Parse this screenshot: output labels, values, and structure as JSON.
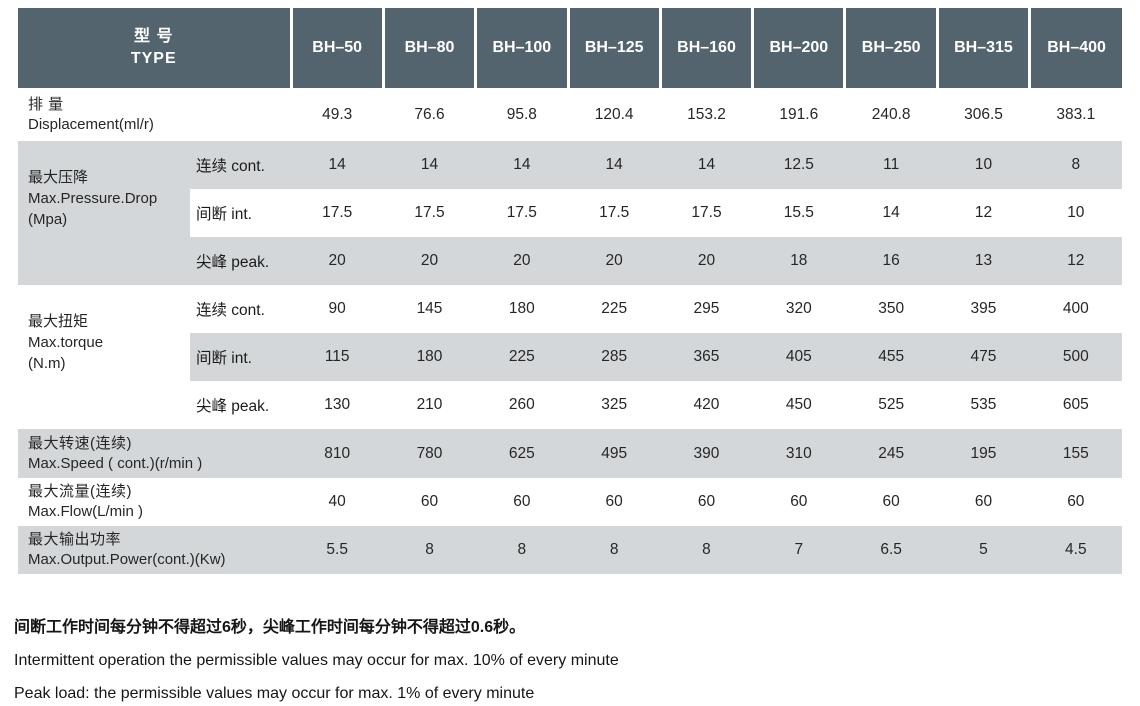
{
  "header": {
    "type_cn": "型 号",
    "type_en": "TYPE",
    "models": [
      "BH–50",
      "BH–80",
      "BH–100",
      "BH–125",
      "BH–160",
      "BH–200",
      "BH–250",
      "BH–315",
      "BH–400"
    ]
  },
  "displacement": {
    "label_cn": "排 量",
    "label_en": "Displacement(ml/r)",
    "values": [
      "49.3",
      "76.6",
      "95.8",
      "120.4",
      "153.2",
      "191.6",
      "240.8",
      "306.5",
      "383.1"
    ]
  },
  "pressure": {
    "label_cn": "最大压降",
    "label_en": "Max.Pressure.Drop",
    "label_unit": "(Mpa)",
    "cont": {
      "label": "连续 cont.",
      "values": [
        "14",
        "14",
        "14",
        "14",
        "14",
        "12.5",
        "11",
        "10",
        "8"
      ]
    },
    "int": {
      "label": "间断 int.",
      "values": [
        "17.5",
        "17.5",
        "17.5",
        "17.5",
        "17.5",
        "15.5",
        "14",
        "12",
        "10"
      ]
    },
    "peak": {
      "label": "尖峰 peak.",
      "values": [
        "20",
        "20",
        "20",
        "20",
        "20",
        "18",
        "16",
        "13",
        "12"
      ]
    }
  },
  "torque": {
    "label_cn": "最大扭矩",
    "label_en": "Max.torque",
    "label_unit": "(N.m)",
    "cont": {
      "label": "连续 cont.",
      "values": [
        "90",
        "145",
        "180",
        "225",
        "295",
        "320",
        "350",
        "395",
        "400"
      ]
    },
    "int": {
      "label": "间断 int.",
      "values": [
        "115",
        "180",
        "225",
        "285",
        "365",
        "405",
        "455",
        "475",
        "500"
      ]
    },
    "peak": {
      "label": "尖峰 peak.",
      "values": [
        "130",
        "210",
        "260",
        "325",
        "420",
        "450",
        "525",
        "535",
        "605"
      ]
    }
  },
  "speed": {
    "label_cn": "最大转速(连续)",
    "label_en": " Max.Speed ( cont.)(r/min )",
    "values": [
      "810",
      "780",
      "625",
      "495",
      "390",
      "310",
      "245",
      "195",
      "155"
    ]
  },
  "flow": {
    "label_cn": "最大流量(连续)",
    "label_en": "Max.Flow(L/min )",
    "values": [
      "40",
      "60",
      "60",
      "60",
      "60",
      "60",
      "60",
      "60",
      "60"
    ]
  },
  "power": {
    "label_cn": "最大输出功率",
    "label_en": "Max.Output.Power(cont.)(Kw)",
    "values": [
      "5.5",
      "8",
      "8",
      "8",
      "8",
      "7",
      "6.5",
      "5",
      "4.5"
    ]
  },
  "footer": {
    "note_cn": "间断工作时间每分钟不得超过6秒，尖峰工作时间每分钟不得超过0.6秒。",
    "note_int": "Intermittent operation the permissible values may occur for max. 10% of every minute",
    "note_peak": "Peak load: the permissible values may occur for max. 1% of every minute"
  },
  "colors": {
    "header_bg": "#54646e",
    "header_text": "#ffffff",
    "stripe_bg": "#d4d7d9",
    "body_text": "#262626"
  }
}
